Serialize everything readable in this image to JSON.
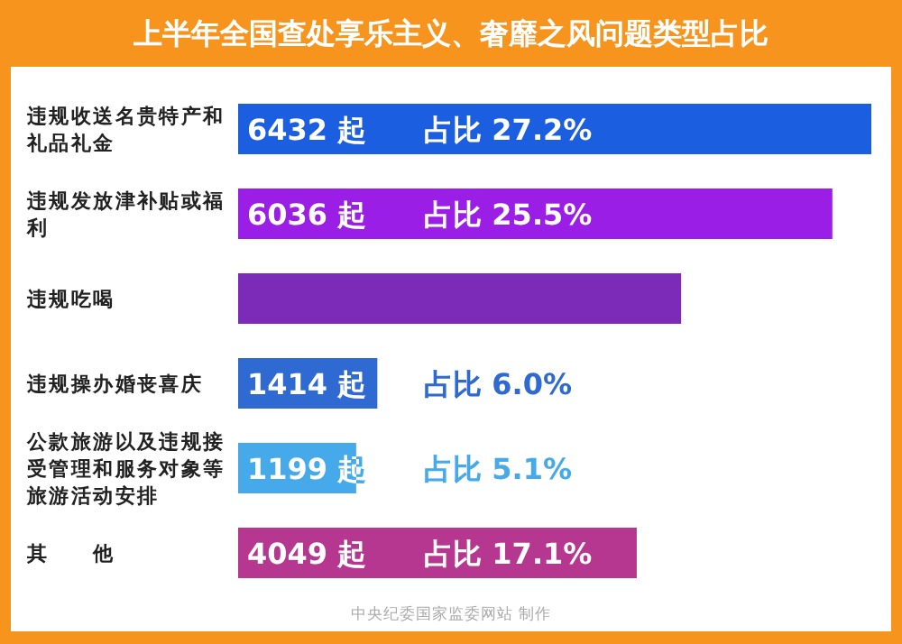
{
  "chart_data": {
    "type": "bar",
    "orientation": "horizontal",
    "title": "上半年全国查处享乐主义、奢靡之风问题类型占比",
    "categories": [
      "违规收送名贵特产和礼品礼金",
      "违规发放津补贴或福利",
      "违规吃喝",
      "违规操办婚丧喜庆",
      "公款旅游以及违规接受管理和服务对象等旅游活动安排",
      "其　　他"
    ],
    "values": [
      6432,
      6036,
      4500,
      1414,
      1199,
      4049
    ],
    "colors": [
      "#1b5fe0",
      "#9a1ee6",
      "#7b2bb8",
      "#2f6ad2",
      "#45a9ea",
      "#b6378f"
    ],
    "value_labels": [
      "6432 起　　占比 27.2%",
      "6036 起　　占比 25.5%",
      null,
      "1414 起　　占比 6.0%",
      "1199 起　　占比 5.1%",
      "4049 起　　占比 17.1%"
    ],
    "annotations": [
      "中央纪委国家监委网站 制作"
    ]
  }
}
